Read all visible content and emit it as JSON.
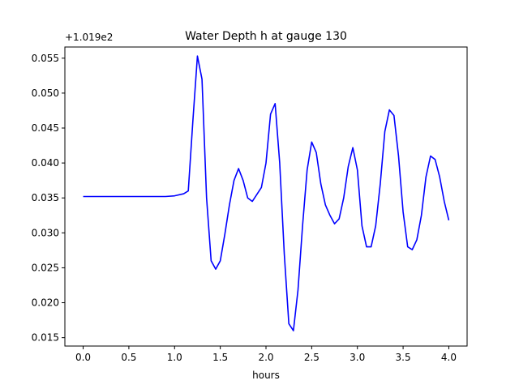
{
  "chart_data": {
    "type": "line",
    "title": "Water Depth h at gauge 130",
    "xlabel": "hours",
    "ylabel": "",
    "offset_label": "+1.019e2",
    "xlim": [
      -0.2,
      4.2
    ],
    "ylim": [
      0.0138,
      0.0566
    ],
    "x_ticks": [
      0.0,
      0.5,
      1.0,
      1.5,
      2.0,
      2.5,
      3.0,
      3.5,
      4.0
    ],
    "x_tick_labels": [
      "0.0",
      "0.5",
      "1.0",
      "1.5",
      "2.0",
      "2.5",
      "3.0",
      "3.5",
      "4.0"
    ],
    "y_ticks": [
      0.015,
      0.02,
      0.025,
      0.03,
      0.035,
      0.04,
      0.045,
      0.05,
      0.055
    ],
    "y_tick_labels": [
      "0.015",
      "0.020",
      "0.025",
      "0.030",
      "0.035",
      "0.040",
      "0.045",
      "0.050",
      "0.055"
    ],
    "grid": false,
    "series": [
      {
        "color": "#0000ff",
        "x": [
          0.0,
          0.5,
          0.9,
          1.0,
          1.1,
          1.15,
          1.2,
          1.25,
          1.3,
          1.35,
          1.4,
          1.45,
          1.5,
          1.55,
          1.6,
          1.65,
          1.7,
          1.75,
          1.8,
          1.85,
          1.9,
          1.95,
          2.0,
          2.05,
          2.1,
          2.15,
          2.2,
          2.25,
          2.3,
          2.35,
          2.4,
          2.45,
          2.5,
          2.55,
          2.6,
          2.65,
          2.7,
          2.75,
          2.8,
          2.85,
          2.9,
          2.95,
          3.0,
          3.05,
          3.1,
          3.15,
          3.2,
          3.25,
          3.3,
          3.35,
          3.4,
          3.45,
          3.5,
          3.55,
          3.6,
          3.65,
          3.7,
          3.75,
          3.8,
          3.85,
          3.9,
          3.95,
          4.0
        ],
        "y": [
          0.0352,
          0.0352,
          0.0352,
          0.0353,
          0.0356,
          0.036,
          0.046,
          0.0553,
          0.052,
          0.035,
          0.026,
          0.0248,
          0.026,
          0.0298,
          0.034,
          0.0375,
          0.0392,
          0.0375,
          0.035,
          0.0345,
          0.0355,
          0.0365,
          0.04,
          0.047,
          0.0485,
          0.04,
          0.027,
          0.017,
          0.016,
          0.0218,
          0.031,
          0.039,
          0.043,
          0.0415,
          0.037,
          0.034,
          0.0325,
          0.0313,
          0.032,
          0.035,
          0.0395,
          0.0422,
          0.039,
          0.031,
          0.028,
          0.028,
          0.031,
          0.037,
          0.0445,
          0.0476,
          0.0468,
          0.041,
          0.033,
          0.028,
          0.0276,
          0.029,
          0.0325,
          0.038,
          0.041,
          0.0405,
          0.038,
          0.0345,
          0.0318
        ]
      }
    ]
  }
}
